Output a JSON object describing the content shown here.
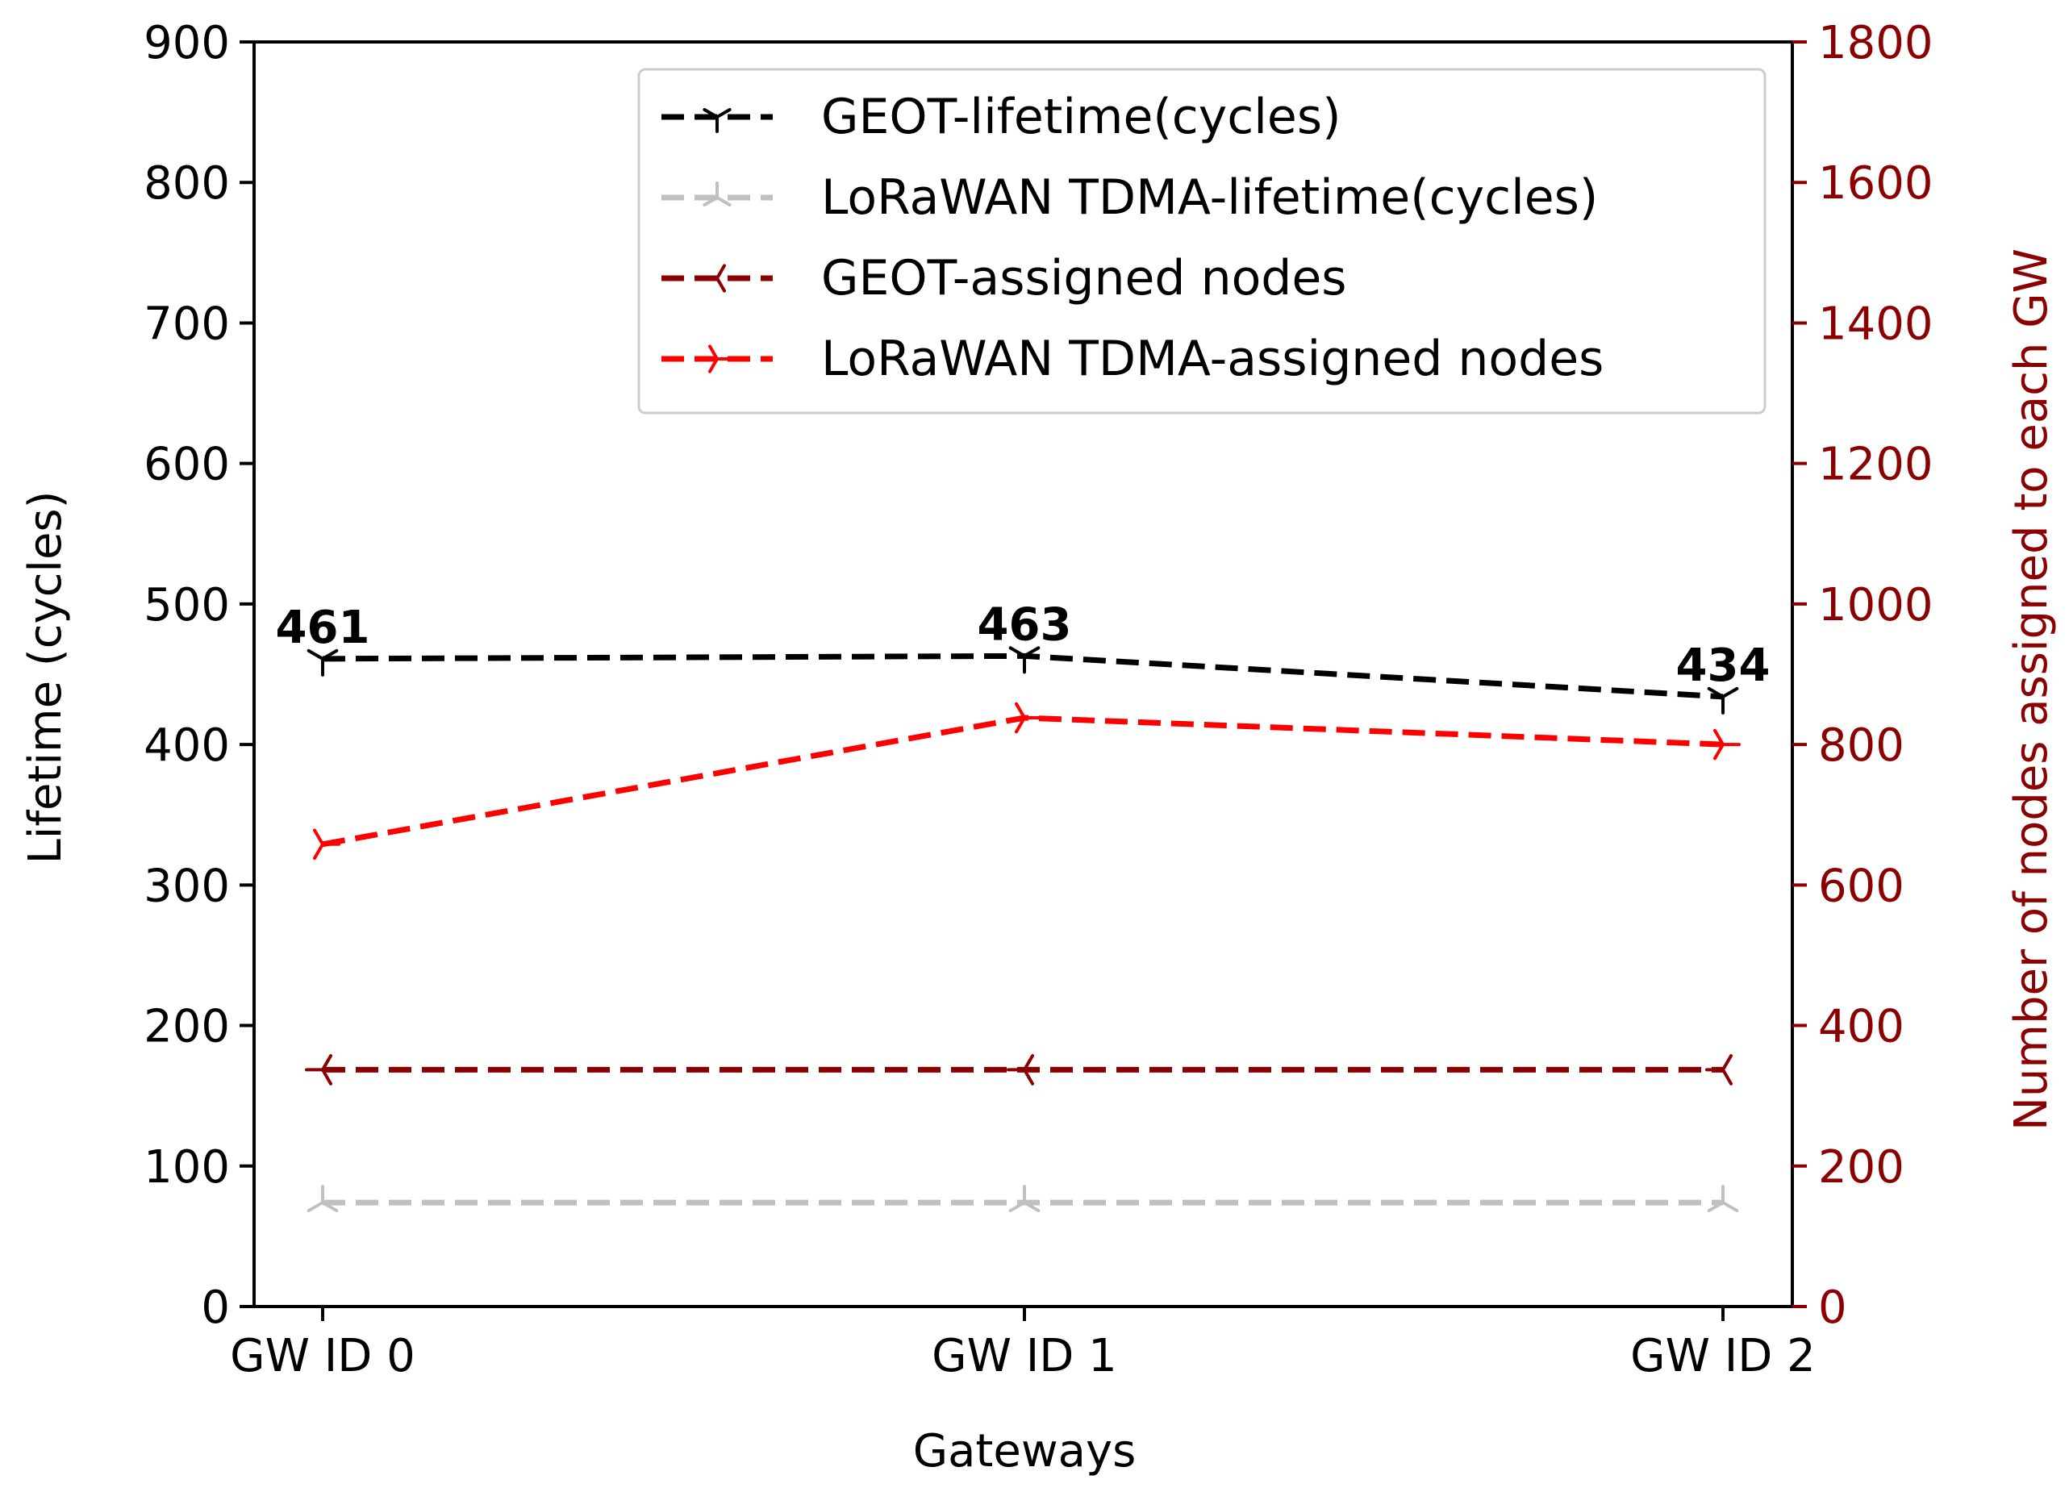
{
  "chart_data": {
    "type": "line",
    "xlabel": "Gateways",
    "ylabel": "Lifetime (cycles)",
    "y2label": "Number of nodes assigned to each GW",
    "categories": [
      "GW ID 0",
      "GW ID 1",
      "GW ID 2"
    ],
    "ylim": [
      0,
      900
    ],
    "y2lim": [
      0,
      1800
    ],
    "yticks": [
      "0",
      "100",
      "200",
      "300",
      "400",
      "500",
      "600",
      "700",
      "800",
      "900"
    ],
    "y2ticks": [
      "0",
      "200",
      "400",
      "600",
      "800",
      "1000",
      "1200",
      "1400",
      "1600",
      "1800"
    ],
    "legend_position": "top-right",
    "series": [
      {
        "name": "GEOT-lifetime(cycles)",
        "axis": "left",
        "values": [
          461,
          463,
          434
        ],
        "labels": [
          "461",
          "463",
          "434"
        ],
        "color": "#000000",
        "style": "dashed",
        "marker": "tri-down"
      },
      {
        "name": "LoRaWAN TDMA-lifetime(cycles)",
        "axis": "left",
        "values": [
          74,
          74,
          74
        ],
        "color": "#c0c0c0",
        "style": "dashed",
        "marker": "tri-up"
      },
      {
        "name": "GEOT-assigned nodes",
        "axis": "right",
        "values": [
          337,
          337,
          337
        ],
        "color": "#8b0000",
        "style": "dashed",
        "marker": "tri-left"
      },
      {
        "name": "LoRaWAN TDMA-assigned nodes",
        "axis": "right",
        "values": [
          658,
          838,
          800
        ],
        "color": "#ff0000",
        "style": "dashed",
        "marker": "tri-right"
      }
    ],
    "colors": {
      "axis": "#000000",
      "right_axis": "#8b0000"
    }
  }
}
